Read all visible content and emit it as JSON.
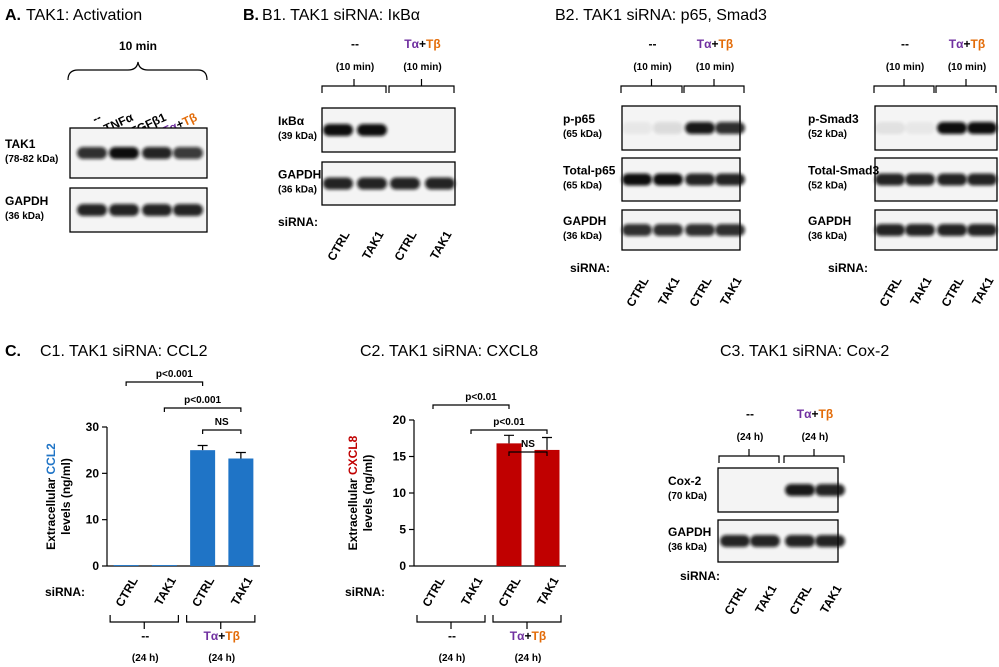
{
  "panel_a": {
    "letter": "A.",
    "title": "TAK1: Activation",
    "time": "10 min",
    "lanes": [
      "--",
      "TNFα",
      "TGFβ1",
      [
        "Tα",
        "+",
        "Tβ"
      ]
    ],
    "rows": [
      {
        "name": "TAK1",
        "size": "(78-82 kDa)"
      },
      {
        "name": "GAPDH",
        "size": "(36 kDa)"
      }
    ]
  },
  "panel_b1": {
    "letter": "B.",
    "title": "B1. TAK1 siRNA: IκBα",
    "groups": [
      {
        "label": "--",
        "time": "(10 min)"
      },
      {
        "label": [
          "Tα",
          "+",
          "Tβ"
        ],
        "time": "(10 min)"
      }
    ],
    "rows": [
      {
        "name": "IκBα",
        "size": "(39 kDa)"
      },
      {
        "name": "GAPDH",
        "size": "(36 kDa)"
      }
    ],
    "sirna_label": "siRNA:",
    "lanes": [
      "CTRL",
      "TAK1",
      "CTRL",
      "TAK1"
    ]
  },
  "panel_b2": {
    "title": "B2. TAK1 siRNA: p65, Smad3",
    "blots": [
      {
        "groups": [
          {
            "label": "--",
            "time": "(10 min)"
          },
          {
            "label": [
              "Tα",
              "+",
              "Tβ"
            ],
            "time": "(10 min)"
          }
        ],
        "rows": [
          {
            "name": "p-p65",
            "size": "(65 kDa)"
          },
          {
            "name": "Total-p65",
            "size": "(65 kDa)"
          },
          {
            "name": "GAPDH",
            "size": "(36 kDa)"
          }
        ],
        "sirna_label": "siRNA:",
        "lanes": [
          "CTRL",
          "TAK1",
          "CTRL",
          "TAK1"
        ]
      },
      {
        "groups": [
          {
            "label": "--",
            "time": "(10 min)"
          },
          {
            "label": [
              "Tα",
              "+",
              "Tβ"
            ],
            "time": "(10 min)"
          }
        ],
        "rows": [
          {
            "name": "p-Smad3",
            "size": "(52 kDa)"
          },
          {
            "name": "Total-Smad3",
            "size": "(52 kDa)"
          },
          {
            "name": "GAPDH",
            "size": "(36 kDa)"
          }
        ],
        "sirna_label": "siRNA:",
        "lanes": [
          "CTRL",
          "TAK1",
          "CTRL",
          "TAK1"
        ]
      }
    ]
  },
  "panel_c3": {
    "title": "C3. TAK1 siRNA: Cox-2",
    "groups": [
      {
        "label": "--",
        "time": "(24 h)"
      },
      {
        "label": [
          "Tα",
          "+",
          "Tβ"
        ],
        "time": "(24 h)"
      }
    ],
    "rows": [
      {
        "name": "Cox-2",
        "size": "(70 kDa)"
      },
      {
        "name": "GAPDH",
        "size": "(36 kDa)"
      }
    ],
    "sirna_label": "siRNA:",
    "lanes": [
      "CTRL",
      "TAK1",
      "CTRL",
      "TAK1"
    ]
  },
  "chart_data": [
    {
      "type": "bar",
      "letter": "C.",
      "title": "C1. TAK1 siRNA: CCL2",
      "ylabel": "Extracellular ",
      "ylabel_marker": "CCL2",
      "ylabel_unit": "levels (ng/ml)",
      "categories": [
        "CTRL",
        "TAK1",
        "CTRL",
        "TAK1"
      ],
      "values": [
        0.2,
        0.2,
        25,
        23.2
      ],
      "errors": [
        0,
        0,
        1,
        1.3
      ],
      "color": "#1f74c6",
      "ylim": [
        0,
        30
      ],
      "yticks": [
        0,
        10,
        20,
        30
      ],
      "annotations": [
        "p<0.001",
        "p<0.001",
        "NS"
      ],
      "sirna_label": "siRNA:",
      "groups": [
        {
          "label": "--",
          "time": "(24 h)"
        },
        {
          "label": [
            "Tα",
            "+",
            "Tβ"
          ],
          "time": "(24 h)"
        }
      ]
    },
    {
      "type": "bar",
      "title": "C2. TAK1 siRNA: CXCL8",
      "ylabel": "Extracellular ",
      "ylabel_marker": "CXCL8",
      "ylabel_unit": "levels (ng/ml)",
      "categories": [
        "CTRL",
        "TAK1",
        "CTRL",
        "TAK1"
      ],
      "values": [
        0,
        0,
        16.8,
        15.9
      ],
      "errors": [
        0,
        0,
        1.1,
        1.7
      ],
      "color": "#c00000",
      "ylim": [
        0,
        20
      ],
      "yticks": [
        0,
        5,
        10,
        15,
        20
      ],
      "annotations": [
        "p<0.01",
        "p<0.01",
        "NS"
      ],
      "sirna_label": "siRNA:",
      "groups": [
        {
          "label": "--",
          "time": "(24 h)"
        },
        {
          "label": [
            "Tα",
            "+",
            "Tβ"
          ],
          "time": "(24 h)"
        }
      ]
    }
  ]
}
